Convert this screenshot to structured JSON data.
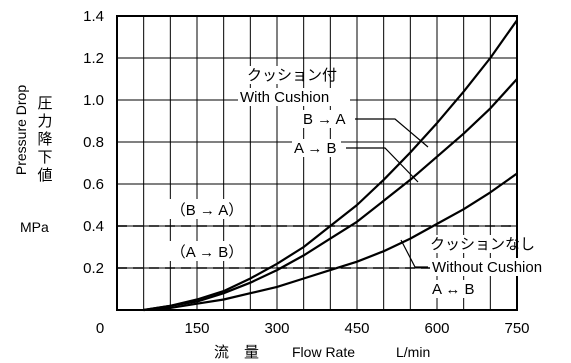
{
  "chart_data": {
    "type": "line",
    "xlabel_jp": "流　量",
    "xlabel": "Flow Rate",
    "xunit": "L/min",
    "ylabel_jp": "圧力降下値",
    "ylabel": "Pressure Drop",
    "yunit": "MPa",
    "xlim": [
      0,
      750
    ],
    "ylim": [
      0,
      1.4
    ],
    "x_ticks": [
      "0",
      "150",
      "300",
      "450",
      "600",
      "750"
    ],
    "y_ticks": [
      "0.2",
      "0.4",
      "0.6",
      "0.8",
      "1.0",
      "1.2",
      "1.4"
    ],
    "grid": true,
    "series": [
      {
        "name": "B → A",
        "group": "With Cushion",
        "x": [
          50,
          100,
          150,
          200,
          250,
          300,
          350,
          400,
          450,
          500,
          550,
          600,
          650,
          700,
          750
        ],
        "y": [
          0.0,
          0.02,
          0.05,
          0.09,
          0.15,
          0.22,
          0.3,
          0.4,
          0.5,
          0.62,
          0.75,
          0.89,
          1.04,
          1.2,
          1.38
        ]
      },
      {
        "name": "A → B",
        "group": "With Cushion",
        "x": [
          50,
          100,
          150,
          200,
          250,
          300,
          350,
          400,
          450,
          500,
          550,
          600,
          650,
          700,
          750
        ],
        "y": [
          0.0,
          0.02,
          0.04,
          0.08,
          0.13,
          0.19,
          0.26,
          0.34,
          0.42,
          0.52,
          0.62,
          0.73,
          0.84,
          0.96,
          1.1
        ]
      },
      {
        "name": "A ↔ B",
        "group": "Without Cushion",
        "x": [
          50,
          100,
          150,
          200,
          250,
          300,
          350,
          400,
          450,
          500,
          550,
          600,
          650,
          700,
          750
        ],
        "y": [
          0.0,
          0.01,
          0.03,
          0.05,
          0.08,
          0.11,
          0.15,
          0.19,
          0.23,
          0.28,
          0.34,
          0.41,
          0.48,
          0.56,
          0.65
        ]
      }
    ],
    "reference_lines": [
      {
        "y": 0.4,
        "label": "（B → A）"
      },
      {
        "y": 0.2,
        "label": "（A → B）"
      }
    ],
    "annotations": {
      "with_cushion_jp": "クッション付",
      "with_cushion_en": "With Cushion",
      "ba_label": "B → A",
      "ab_label": "A → B",
      "without_cushion_jp": "クッションなし",
      "without_cushion_en": "Without Cushion",
      "aba_label": "A ↔ B"
    }
  }
}
